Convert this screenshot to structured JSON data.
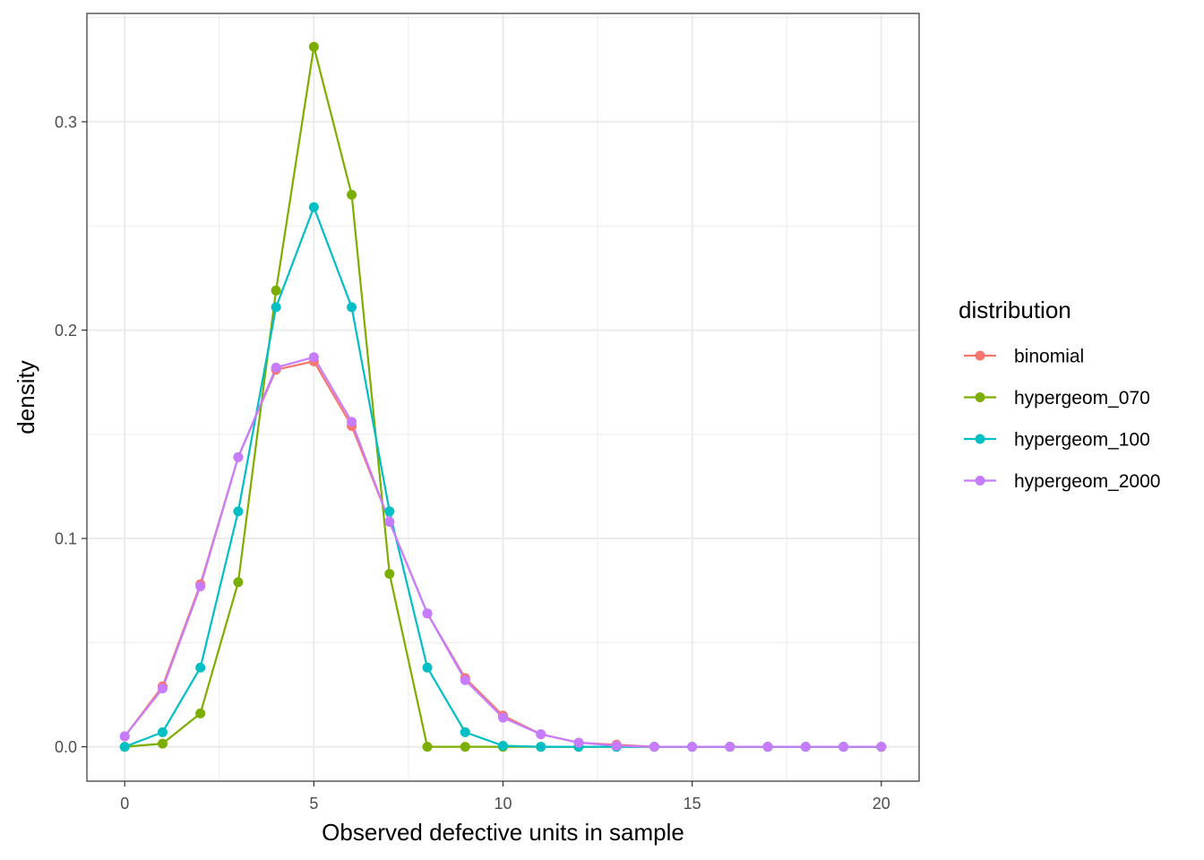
{
  "chart_data": {
    "type": "line",
    "title": "",
    "xlabel": "Observed defective units in sample",
    "ylabel": "density",
    "xlim": [
      -1,
      21
    ],
    "ylim": [
      -0.0165,
      0.352
    ],
    "x_ticks": [
      0,
      5,
      10,
      15,
      20
    ],
    "x_tick_labels": [
      "0",
      "5",
      "10",
      "15",
      "20"
    ],
    "y_ticks": [
      0.0,
      0.1,
      0.2,
      0.3
    ],
    "y_tick_labels": [
      "0.0",
      "0.1",
      "0.2",
      "0.3"
    ],
    "grid": true,
    "markers": true,
    "legend": {
      "title": "distribution",
      "position": "right"
    },
    "x": [
      0,
      1,
      2,
      3,
      4,
      5,
      6,
      7,
      8,
      9,
      10,
      11,
      12,
      13,
      14,
      15,
      16,
      17,
      18,
      19,
      20
    ],
    "series": [
      {
        "name": "binomial",
        "color": "#F8766D",
        "values": [
          0.005,
          0.029,
          0.078,
          0.139,
          0.181,
          0.185,
          0.154,
          0.108,
          0.064,
          0.033,
          0.015,
          0.006,
          0.002,
          0.001,
          0.0,
          0.0,
          0.0,
          0.0,
          0.0,
          0.0,
          0.0
        ]
      },
      {
        "name": "hypergeom_070",
        "color": "#7CAE00",
        "values": [
          0.0,
          0.0015,
          0.016,
          0.079,
          0.219,
          0.336,
          0.265,
          0.083,
          0.0,
          0.0,
          0.0,
          0.0,
          0.0,
          0.0,
          0.0,
          0.0,
          0.0,
          0.0,
          0.0,
          0.0,
          0.0
        ]
      },
      {
        "name": "hypergeom_100",
        "color": "#00BFC4",
        "values": [
          0.0,
          0.007,
          0.038,
          0.113,
          0.211,
          0.259,
          0.211,
          0.113,
          0.038,
          0.007,
          0.0005,
          0.0,
          0.0,
          0.0,
          0.0,
          0.0,
          0.0,
          0.0,
          0.0,
          0.0,
          0.0
        ]
      },
      {
        "name": "hypergeom_2000",
        "color": "#C77CFF",
        "values": [
          0.005,
          0.028,
          0.077,
          0.139,
          0.182,
          0.187,
          0.156,
          0.108,
          0.064,
          0.032,
          0.014,
          0.006,
          0.002,
          0.0005,
          0.0,
          0.0,
          0.0,
          0.0,
          0.0,
          0.0,
          0.0
        ]
      }
    ]
  }
}
